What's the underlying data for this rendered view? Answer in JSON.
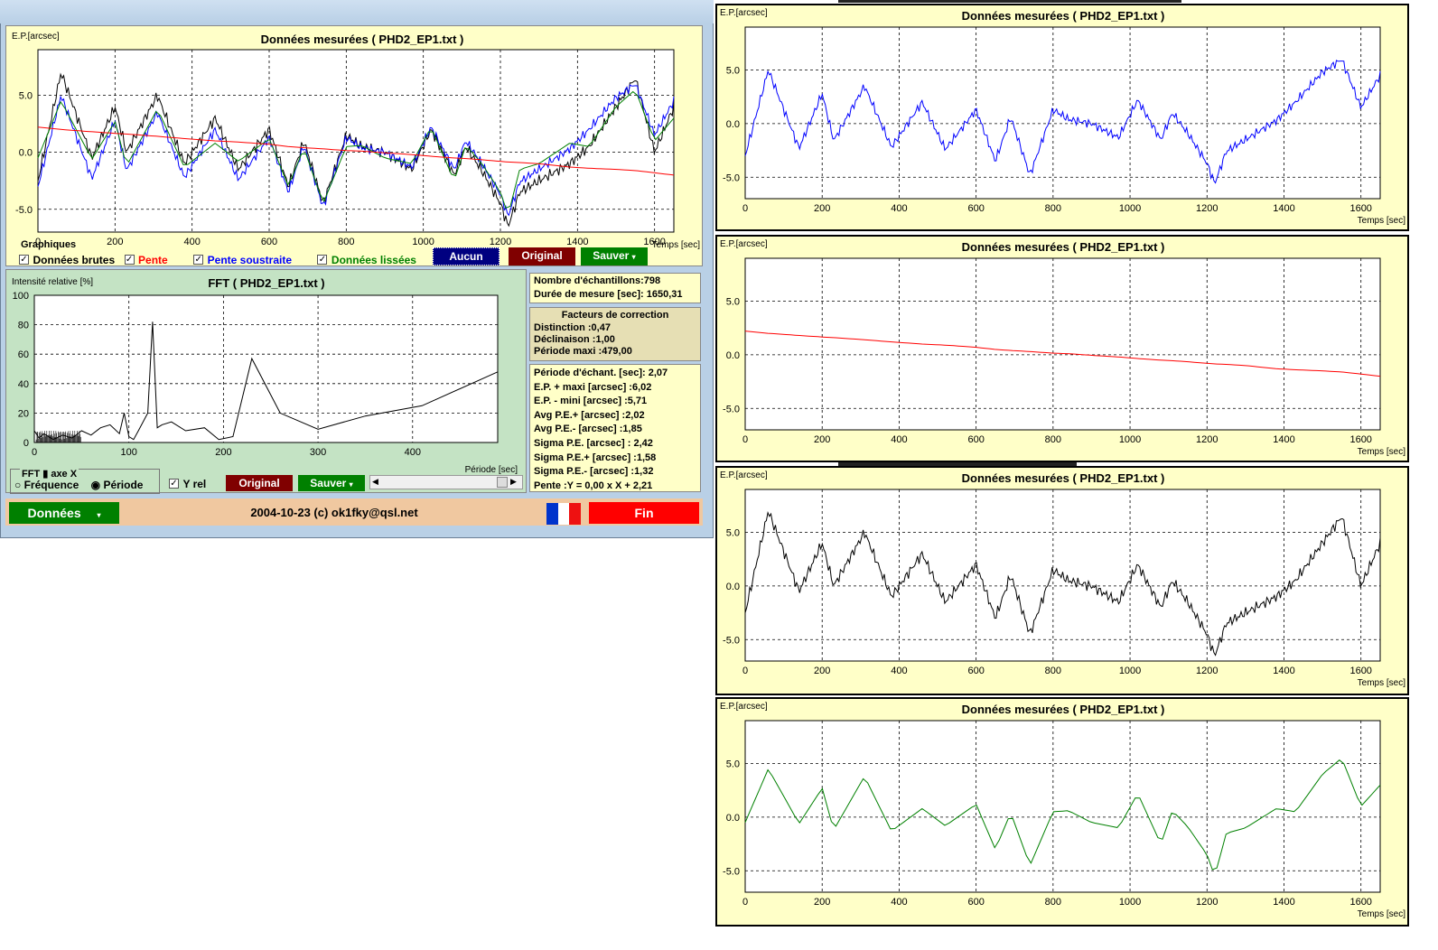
{
  "main_chart": {
    "ylabel": "E.P.[arcsec]",
    "title": "Données mesurées ( PHD2_EP1.txt )",
    "xlabel": "Temps [sec]"
  },
  "controls": {
    "group_label": "Graphiques",
    "checkboxes": [
      {
        "label": "Données brutes",
        "color": "#000000",
        "checked": true
      },
      {
        "label": "Pente",
        "color": "#ff0000",
        "checked": true
      },
      {
        "label": "Pente soustraite",
        "color": "#0000ff",
        "checked": true
      },
      {
        "label": "Données lissées",
        "color": "#008000",
        "checked": true
      }
    ],
    "btn_aucun": "Aucun",
    "btn_original": "Original",
    "btn_sauver": "Sauver"
  },
  "fft": {
    "ylabel": "Intensité relative [%]",
    "title": "FFT ( PHD2_EP1.txt )",
    "xlabel": "Période [sec]",
    "axis_group": "FFT ▮ axe X",
    "radio_freq": "Fréquence",
    "radio_period": "Période",
    "yrel": "Y rel",
    "btn_original": "Original",
    "btn_sauver": "Sauver"
  },
  "stats": {
    "samples": "Nombre d'échantillons:798",
    "duration": "Durée de mesure [sec]: 1650,31",
    "corr_title": "Facteurs de correction",
    "corr": [
      "Distinction :0,47",
      "Déclinaison :1,00",
      "Période maxi :479,00"
    ],
    "values": [
      "Période d'échant. [sec]: 2,07",
      "E.P. + maxi [arcsec] :6,02",
      "E.P. - mini [arcsec] :5,71",
      "Avg P.E.+ [arcsec] :2,02",
      "Avg P.E.- [arcsec] :1,85",
      "Sigma P.E. [arcsec] : 2,42",
      "Sigma P.E.+ [arcsec] :1,58",
      "Sigma P.E.- [arcsec] :1,32",
      "Pente :Y = 0,00 x X + 2,21"
    ]
  },
  "footer": {
    "btn_donnees": "Données",
    "credit": "2004-10-23 (c) ok1fky@qsl.net",
    "btn_fin": "Fin"
  },
  "right_panels": [
    {
      "ylabel": "E.P.[arcsec]",
      "title": "Données mesurées ( PHD2_EP1.txt )",
      "xlabel": "Temps [sec]"
    },
    {
      "ylabel": "E.P.[arcsec]",
      "title": "Données mesurées ( PHD2_EP1.txt )",
      "xlabel": "Temps [sec]"
    },
    {
      "ylabel": "E.P.[arcsec]",
      "title": "Données mesurées ( PHD2_EP1.txt )",
      "xlabel": "Temps [sec]"
    },
    {
      "ylabel": "E.P.[arcsec]",
      "title": "Données mesurées ( PHD2_EP1.txt )",
      "xlabel": "Temps [sec]"
    }
  ],
  "chart_data": [
    {
      "type": "line",
      "title": "Données mesurées ( PHD2_EP1.txt )",
      "xlabel": "Temps [sec]",
      "ylabel": "E.P.[arcsec]",
      "xlim": [
        0,
        1650
      ],
      "ylim": [
        -7,
        9
      ],
      "xticks": [
        0,
        200,
        400,
        600,
        800,
        1000,
        1200,
        1400,
        1600
      ],
      "yticks": [
        -5.0,
        0.0,
        5.0
      ],
      "grid": true,
      "x": [
        0,
        60,
        140,
        200,
        230,
        310,
        380,
        460,
        520,
        600,
        650,
        690,
        740,
        800,
        840,
        900,
        970,
        1020,
        1080,
        1110,
        1150,
        1200,
        1220,
        1250,
        1300,
        1380,
        1430,
        1500,
        1550,
        1600,
        1650
      ],
      "series": [
        {
          "name": "Données brutes",
          "color": "#000000",
          "values": [
            -2.5,
            7.0,
            -0.5,
            4.0,
            0.0,
            5.0,
            -1.0,
            3.0,
            -1.5,
            2.0,
            -3.0,
            1.0,
            -4.5,
            1.5,
            0.5,
            0.0,
            -1.5,
            2.0,
            -2.0,
            0.5,
            -1.5,
            -4.5,
            -6.5,
            -3.5,
            -2.5,
            -1.0,
            0.5,
            4.0,
            6.5,
            0.0,
            4.0
          ]
        },
        {
          "name": "Pente",
          "color": "#ff0000",
          "values": [
            2.21,
            2.0,
            1.8,
            1.66,
            1.6,
            1.4,
            1.2,
            1.0,
            0.9,
            0.7,
            0.5,
            0.4,
            0.3,
            0.15,
            0.1,
            -0.05,
            -0.2,
            -0.35,
            -0.5,
            -0.55,
            -0.65,
            -0.8,
            -0.85,
            -0.9,
            -1.0,
            -1.3,
            -1.4,
            -1.5,
            -1.6,
            -1.8,
            -2.0
          ]
        },
        {
          "name": "Pente soustraite",
          "color": "#0000ff",
          "values": [
            -3.0,
            5.0,
            -2.3,
            2.8,
            -1.6,
            3.5,
            -2.2,
            2.0,
            -2.4,
            1.3,
            -3.5,
            0.6,
            -4.8,
            1.3,
            0.4,
            0.0,
            -1.3,
            2.2,
            -1.5,
            1.0,
            -0.9,
            -3.7,
            -5.6,
            -2.6,
            -1.5,
            0.3,
            2.0,
            4.8,
            6.0,
            1.5,
            4.5
          ]
        },
        {
          "name": "Données lissées",
          "color": "#008000",
          "values": [
            -0.5,
            4.5,
            -0.6,
            2.7,
            -1.2,
            3.8,
            -1.3,
            0.8,
            -0.8,
            1.2,
            -3.0,
            0.4,
            -4.5,
            0.5,
            0.6,
            -0.5,
            -1.0,
            2.2,
            -2.5,
            0.6,
            -0.9,
            -3.5,
            -5.5,
            -1.5,
            -1.0,
            0.8,
            0.5,
            4.0,
            5.5,
            1.0,
            3.0
          ]
        }
      ]
    },
    {
      "type": "line",
      "title": "FFT ( PHD2_EP1.txt )",
      "xlabel": "Période [sec]",
      "ylabel": "Intensité relative [%]",
      "xlim": [
        0,
        490
      ],
      "ylim": [
        0,
        100
      ],
      "xticks": [
        0,
        100,
        200,
        300,
        400
      ],
      "yticks": [
        0,
        20,
        40,
        60,
        80,
        100
      ],
      "grid": true,
      "series": [
        {
          "name": "FFT",
          "color": "#000000",
          "x": [
            0,
            5,
            10,
            20,
            30,
            40,
            50,
            60,
            70,
            80,
            90,
            95,
            100,
            105,
            110,
            120,
            125,
            130,
            135,
            145,
            160,
            180,
            195,
            210,
            230,
            260,
            300,
            350,
            410,
            490
          ],
          "values": [
            8,
            3,
            6,
            2,
            5,
            3,
            8,
            5,
            10,
            12,
            6,
            20,
            4,
            2,
            8,
            20,
            82,
            10,
            12,
            14,
            8,
            10,
            2,
            4,
            57,
            20,
            9,
            18,
            25,
            48
          ]
        }
      ]
    }
  ]
}
